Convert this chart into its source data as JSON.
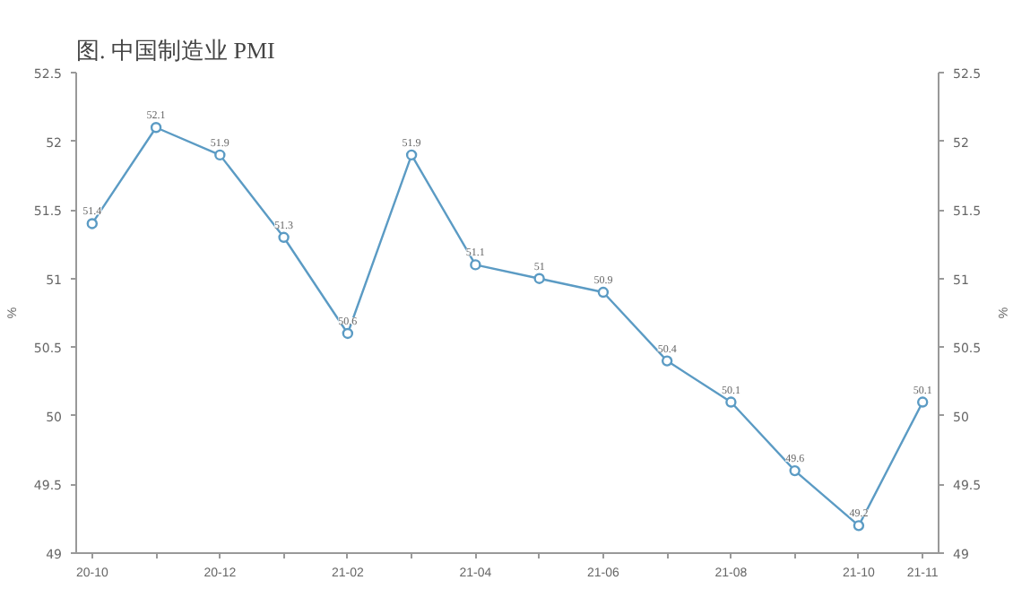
{
  "chart_data": {
    "type": "line",
    "title": "图. 中国制造业 PMI",
    "categories": [
      "20-10",
      null,
      "20-12",
      null,
      "21-02",
      null,
      "21-04",
      null,
      "21-06",
      null,
      "21-08",
      null,
      "21-10",
      "21-11"
    ],
    "series": [
      {
        "color": "#5b9bc4",
        "values": [
          51.4,
          52.1,
          51.9,
          51.3,
          50.6,
          51.9,
          51.1,
          51,
          50.9,
          50.4,
          50.1,
          49.6,
          49.2,
          50.1
        ]
      }
    ],
    "ylabel": "%",
    "y2label": "%",
    "ylim": [
      49,
      52.5
    ],
    "yticks": [
      49,
      49.5,
      50,
      50.5,
      51,
      51.5,
      52,
      52.5
    ],
    "y2lim": [
      49,
      52.5
    ],
    "y2ticks": [
      49,
      49.5,
      50,
      50.5,
      51,
      51.5,
      52,
      52.5
    ],
    "data_labels": true,
    "marker": "circle",
    "grid": false,
    "line_style": "solid"
  }
}
